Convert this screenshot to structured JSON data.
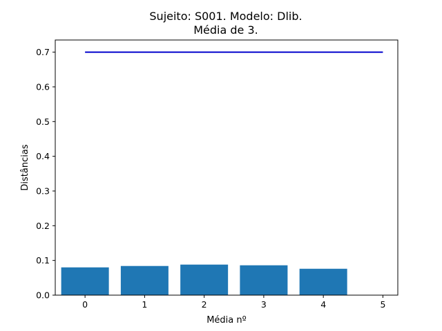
{
  "chart_data": {
    "type": "bar",
    "title": "Sujeito: S001. Modelo: Dlib.",
    "subtitle": "Média de 3.",
    "xlabel": "Média nº",
    "ylabel": "Distâncias",
    "categories": [
      0,
      1,
      2,
      3,
      4
    ],
    "values": [
      0.08,
      0.084,
      0.088,
      0.086,
      0.076
    ],
    "bar_color": "#1f77b4",
    "threshold_line": {
      "x": [
        0,
        5
      ],
      "y": 0.7,
      "color": "#0000cc"
    },
    "xlim": [
      -0.5,
      5.25
    ],
    "ylim": [
      0,
      0.735
    ],
    "xticks": [
      "0",
      "1",
      "2",
      "3",
      "4",
      "5"
    ],
    "yticks": [
      "0.0",
      "0.1",
      "0.2",
      "0.3",
      "0.4",
      "0.5",
      "0.6",
      "0.7"
    ],
    "grid": false
  }
}
